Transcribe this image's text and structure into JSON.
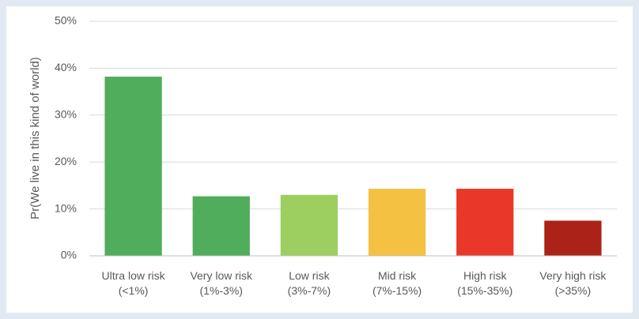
{
  "chart_data": {
    "type": "bar",
    "y_label": "Pr(We live in this kind of world)",
    "categories": [
      "Ultra low risk (<1%)",
      "Very low risk (1%-3%)",
      "Low risk (3%-7%)",
      "Mid risk (7%-15%)",
      "High risk (15%-35%)",
      "Very high risk (>35%)"
    ],
    "values": [
      38.2,
      12.7,
      13,
      14.3,
      14.3,
      7.5
    ],
    "colors": [
      "#4fad5b",
      "#4fad5b",
      "#9ccf5f",
      "#f4c142",
      "#e9382a",
      "#ab2318"
    ],
    "ylim": [
      0,
      50
    ],
    "yticks": [
      {
        "value": 0,
        "label": "0%"
      },
      {
        "value": 10,
        "label": "10%"
      },
      {
        "value": 20,
        "label": "20%"
      },
      {
        "value": 30,
        "label": "30%"
      },
      {
        "value": 40,
        "label": "40%"
      },
      {
        "value": 50,
        "label": "50%"
      }
    ],
    "grid": true
  }
}
